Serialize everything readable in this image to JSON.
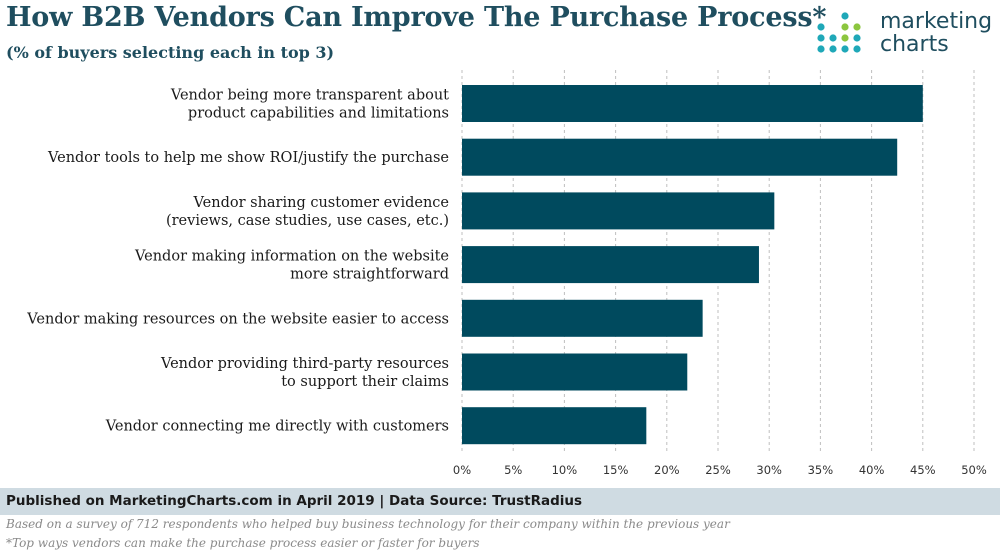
{
  "header": {
    "title": "How B2B Vendors Can Improve The Purchase Process*",
    "subtitle": "(% of buyers selecting each in top 3)"
  },
  "logo": {
    "line1": "marketing",
    "line2": "charts",
    "icon": "dot-grid-logo-icon"
  },
  "chart_data": {
    "type": "bar",
    "orientation": "horizontal",
    "categories": [
      [
        "Vendor being more transparent about",
        "product capabilities and limitations"
      ],
      [
        "Vendor tools to help me show ROI/justify the purchase"
      ],
      [
        "Vendor sharing customer evidence",
        "(reviews, case studies, use cases, etc.)"
      ],
      [
        "Vendor making information on the website",
        "more straightforward"
      ],
      [
        "Vendor making resources on the website easier to access"
      ],
      [
        "Vendor providing third-party resources",
        "to support their claims"
      ],
      [
        "Vendor connecting me directly with customers"
      ]
    ],
    "values": [
      45,
      42.5,
      30.5,
      29,
      23.5,
      22,
      18
    ],
    "xlim": [
      0,
      50
    ],
    "ticks": [
      0,
      5,
      10,
      15,
      20,
      25,
      30,
      35,
      40,
      45,
      50
    ],
    "tick_labels": [
      "0%",
      "5%",
      "10%",
      "15%",
      "20%",
      "25%",
      "30%",
      "35%",
      "40%",
      "45%",
      "50%"
    ],
    "grid": "vertical dashed",
    "bar_color": "#004a5e",
    "legend": "none"
  },
  "footer": {
    "published": "Published on MarketingCharts.com in April 2019 | Data Source: TrustRadius",
    "note1": "Based on a survey of 712 respondents who helped buy business technology for their company within the previous year",
    "note2": "*Top ways vendors can make the purchase process easier or faster for buyers"
  },
  "colors": {
    "title": "#1f4e5f",
    "footer_band": "#cfdbe2",
    "logo_teal": "#1fa8b8",
    "logo_green": "#8cc63f"
  }
}
